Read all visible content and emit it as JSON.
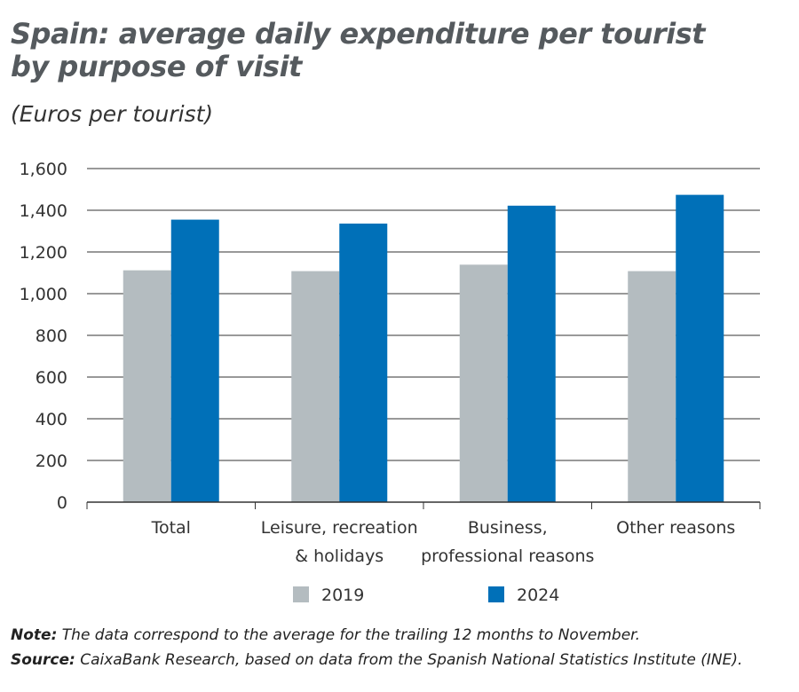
{
  "chart_data": {
    "type": "bar",
    "title": "Spain: average daily expenditure per tourist by purpose of visit",
    "subtitle": "(Euros per tourist)",
    "categories": [
      [
        "Total"
      ],
      [
        "Leisure, recreation",
        "& holidays"
      ],
      [
        "Business,",
        "professional reasons"
      ],
      [
        "Other reasons"
      ]
    ],
    "series": [
      {
        "name": "2019",
        "color": "#b4bcc0",
        "values": [
          1112,
          1108,
          1139,
          1108
        ]
      },
      {
        "name": "2024",
        "color": "#0070b8",
        "values": [
          1355,
          1336,
          1422,
          1474
        ]
      }
    ],
    "ylim": [
      0,
      1600
    ],
    "yticks": [
      0,
      200,
      400,
      600,
      800,
      1000,
      1200,
      1400,
      1600
    ],
    "ytick_labels": [
      "0",
      "200",
      "400",
      "600",
      "800",
      "1,000",
      "1,200",
      "1,400",
      "1,600"
    ],
    "grid": true,
    "legend": "bottom"
  },
  "note_label": "Note:",
  "note": " The data correspond to the average for the trailing 12 months to November.",
  "source_label": "Source:",
  "source": " CaixaBank Research, based on data from the Spanish National Statistics Institute (INE)."
}
